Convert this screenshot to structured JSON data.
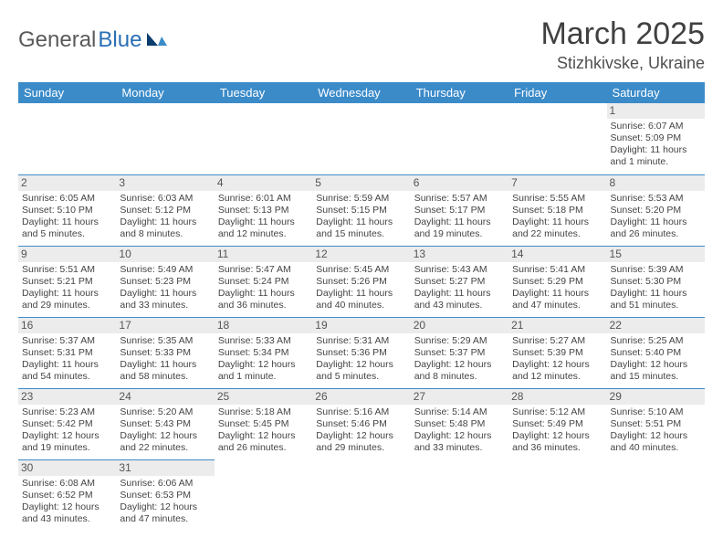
{
  "logo": {
    "text1": "General",
    "text2": "Blue"
  },
  "header": {
    "title": "March 2025",
    "location": "Stizhkivske, Ukraine"
  },
  "columns": [
    "Sunday",
    "Monday",
    "Tuesday",
    "Wednesday",
    "Thursday",
    "Friday",
    "Saturday"
  ],
  "colors": {
    "header_bg": "#3b8bc9",
    "header_text": "#ffffff",
    "daynum_bg": "#ececec",
    "cell_border": "#3b8bc9",
    "body_text": "#444444"
  },
  "weeks": [
    [
      {
        "n": "",
        "empty": true
      },
      {
        "n": "",
        "empty": true
      },
      {
        "n": "",
        "empty": true
      },
      {
        "n": "",
        "empty": true
      },
      {
        "n": "",
        "empty": true
      },
      {
        "n": "",
        "empty": true
      },
      {
        "n": "1",
        "sr": "Sunrise: 6:07 AM",
        "ss": "Sunset: 5:09 PM",
        "d1": "Daylight: 11 hours",
        "d2": "and 1 minute."
      }
    ],
    [
      {
        "n": "2",
        "sr": "Sunrise: 6:05 AM",
        "ss": "Sunset: 5:10 PM",
        "d1": "Daylight: 11 hours",
        "d2": "and 5 minutes."
      },
      {
        "n": "3",
        "sr": "Sunrise: 6:03 AM",
        "ss": "Sunset: 5:12 PM",
        "d1": "Daylight: 11 hours",
        "d2": "and 8 minutes."
      },
      {
        "n": "4",
        "sr": "Sunrise: 6:01 AM",
        "ss": "Sunset: 5:13 PM",
        "d1": "Daylight: 11 hours",
        "d2": "and 12 minutes."
      },
      {
        "n": "5",
        "sr": "Sunrise: 5:59 AM",
        "ss": "Sunset: 5:15 PM",
        "d1": "Daylight: 11 hours",
        "d2": "and 15 minutes."
      },
      {
        "n": "6",
        "sr": "Sunrise: 5:57 AM",
        "ss": "Sunset: 5:17 PM",
        "d1": "Daylight: 11 hours",
        "d2": "and 19 minutes."
      },
      {
        "n": "7",
        "sr": "Sunrise: 5:55 AM",
        "ss": "Sunset: 5:18 PM",
        "d1": "Daylight: 11 hours",
        "d2": "and 22 minutes."
      },
      {
        "n": "8",
        "sr": "Sunrise: 5:53 AM",
        "ss": "Sunset: 5:20 PM",
        "d1": "Daylight: 11 hours",
        "d2": "and 26 minutes."
      }
    ],
    [
      {
        "n": "9",
        "sr": "Sunrise: 5:51 AM",
        "ss": "Sunset: 5:21 PM",
        "d1": "Daylight: 11 hours",
        "d2": "and 29 minutes."
      },
      {
        "n": "10",
        "sr": "Sunrise: 5:49 AM",
        "ss": "Sunset: 5:23 PM",
        "d1": "Daylight: 11 hours",
        "d2": "and 33 minutes."
      },
      {
        "n": "11",
        "sr": "Sunrise: 5:47 AM",
        "ss": "Sunset: 5:24 PM",
        "d1": "Daylight: 11 hours",
        "d2": "and 36 minutes."
      },
      {
        "n": "12",
        "sr": "Sunrise: 5:45 AM",
        "ss": "Sunset: 5:26 PM",
        "d1": "Daylight: 11 hours",
        "d2": "and 40 minutes."
      },
      {
        "n": "13",
        "sr": "Sunrise: 5:43 AM",
        "ss": "Sunset: 5:27 PM",
        "d1": "Daylight: 11 hours",
        "d2": "and 43 minutes."
      },
      {
        "n": "14",
        "sr": "Sunrise: 5:41 AM",
        "ss": "Sunset: 5:29 PM",
        "d1": "Daylight: 11 hours",
        "d2": "and 47 minutes."
      },
      {
        "n": "15",
        "sr": "Sunrise: 5:39 AM",
        "ss": "Sunset: 5:30 PM",
        "d1": "Daylight: 11 hours",
        "d2": "and 51 minutes."
      }
    ],
    [
      {
        "n": "16",
        "sr": "Sunrise: 5:37 AM",
        "ss": "Sunset: 5:31 PM",
        "d1": "Daylight: 11 hours",
        "d2": "and 54 minutes."
      },
      {
        "n": "17",
        "sr": "Sunrise: 5:35 AM",
        "ss": "Sunset: 5:33 PM",
        "d1": "Daylight: 11 hours",
        "d2": "and 58 minutes."
      },
      {
        "n": "18",
        "sr": "Sunrise: 5:33 AM",
        "ss": "Sunset: 5:34 PM",
        "d1": "Daylight: 12 hours",
        "d2": "and 1 minute."
      },
      {
        "n": "19",
        "sr": "Sunrise: 5:31 AM",
        "ss": "Sunset: 5:36 PM",
        "d1": "Daylight: 12 hours",
        "d2": "and 5 minutes."
      },
      {
        "n": "20",
        "sr": "Sunrise: 5:29 AM",
        "ss": "Sunset: 5:37 PM",
        "d1": "Daylight: 12 hours",
        "d2": "and 8 minutes."
      },
      {
        "n": "21",
        "sr": "Sunrise: 5:27 AM",
        "ss": "Sunset: 5:39 PM",
        "d1": "Daylight: 12 hours",
        "d2": "and 12 minutes."
      },
      {
        "n": "22",
        "sr": "Sunrise: 5:25 AM",
        "ss": "Sunset: 5:40 PM",
        "d1": "Daylight: 12 hours",
        "d2": "and 15 minutes."
      }
    ],
    [
      {
        "n": "23",
        "sr": "Sunrise: 5:23 AM",
        "ss": "Sunset: 5:42 PM",
        "d1": "Daylight: 12 hours",
        "d2": "and 19 minutes."
      },
      {
        "n": "24",
        "sr": "Sunrise: 5:20 AM",
        "ss": "Sunset: 5:43 PM",
        "d1": "Daylight: 12 hours",
        "d2": "and 22 minutes."
      },
      {
        "n": "25",
        "sr": "Sunrise: 5:18 AM",
        "ss": "Sunset: 5:45 PM",
        "d1": "Daylight: 12 hours",
        "d2": "and 26 minutes."
      },
      {
        "n": "26",
        "sr": "Sunrise: 5:16 AM",
        "ss": "Sunset: 5:46 PM",
        "d1": "Daylight: 12 hours",
        "d2": "and 29 minutes."
      },
      {
        "n": "27",
        "sr": "Sunrise: 5:14 AM",
        "ss": "Sunset: 5:48 PM",
        "d1": "Daylight: 12 hours",
        "d2": "and 33 minutes."
      },
      {
        "n": "28",
        "sr": "Sunrise: 5:12 AM",
        "ss": "Sunset: 5:49 PM",
        "d1": "Daylight: 12 hours",
        "d2": "and 36 minutes."
      },
      {
        "n": "29",
        "sr": "Sunrise: 5:10 AM",
        "ss": "Sunset: 5:51 PM",
        "d1": "Daylight: 12 hours",
        "d2": "and 40 minutes."
      }
    ],
    [
      {
        "n": "30",
        "sr": "Sunrise: 6:08 AM",
        "ss": "Sunset: 6:52 PM",
        "d1": "Daylight: 12 hours",
        "d2": "and 43 minutes."
      },
      {
        "n": "31",
        "sr": "Sunrise: 6:06 AM",
        "ss": "Sunset: 6:53 PM",
        "d1": "Daylight: 12 hours",
        "d2": "and 47 minutes."
      },
      {
        "n": "",
        "empty": true
      },
      {
        "n": "",
        "empty": true
      },
      {
        "n": "",
        "empty": true
      },
      {
        "n": "",
        "empty": true
      },
      {
        "n": "",
        "empty": true
      }
    ]
  ]
}
